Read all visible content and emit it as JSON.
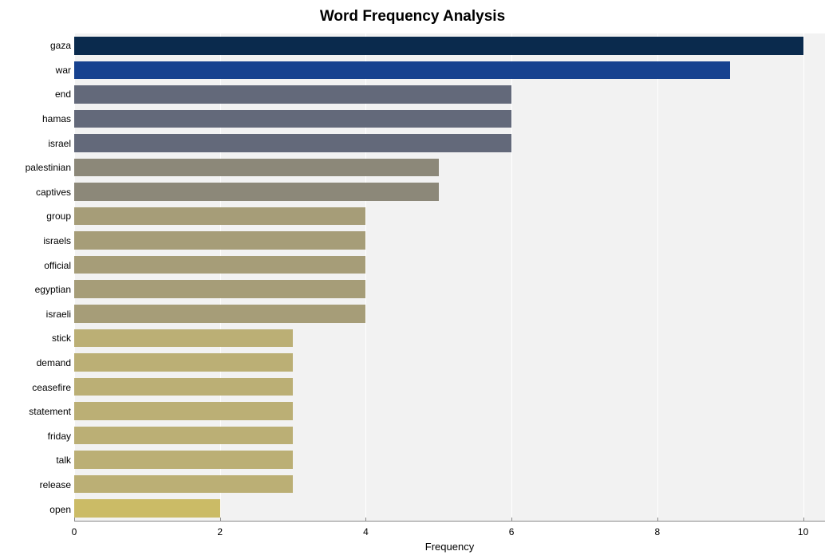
{
  "chart": {
    "type": "bar-horizontal",
    "title": "Word Frequency Analysis",
    "title_fontsize": 19,
    "title_fontweight": "bold",
    "background_color": "#ffffff",
    "plot_background_color": "#f2f2f2",
    "grid_color": "#ffffff",
    "axis_color": "#888888",
    "xlabel": "Frequency",
    "xlabel_fontsize": 13,
    "ylabel_fontsize": 12,
    "xlim": [
      0,
      10.3
    ],
    "xticks": [
      0,
      2,
      4,
      6,
      8,
      10
    ],
    "bar_height_ratio": 0.74,
    "words": [
      {
        "label": "gaza",
        "value": 10,
        "color": "#0a2a4d"
      },
      {
        "label": "war",
        "value": 9,
        "color": "#17428f"
      },
      {
        "label": "end",
        "value": 6,
        "color": "#63697a"
      },
      {
        "label": "hamas",
        "value": 6,
        "color": "#63697a"
      },
      {
        "label": "israel",
        "value": 6,
        "color": "#63697a"
      },
      {
        "label": "palestinian",
        "value": 5,
        "color": "#8c8879"
      },
      {
        "label": "captives",
        "value": 5,
        "color": "#8c8879"
      },
      {
        "label": "group",
        "value": 4,
        "color": "#a69d78"
      },
      {
        "label": "israels",
        "value": 4,
        "color": "#a69d78"
      },
      {
        "label": "official",
        "value": 4,
        "color": "#a69d78"
      },
      {
        "label": "egyptian",
        "value": 4,
        "color": "#a69d78"
      },
      {
        "label": "israeli",
        "value": 4,
        "color": "#a69d78"
      },
      {
        "label": "stick",
        "value": 3,
        "color": "#bbaf75"
      },
      {
        "label": "demand",
        "value": 3,
        "color": "#bbaf75"
      },
      {
        "label": "ceasefire",
        "value": 3,
        "color": "#bbaf75"
      },
      {
        "label": "statement",
        "value": 3,
        "color": "#bbaf75"
      },
      {
        "label": "friday",
        "value": 3,
        "color": "#bbaf75"
      },
      {
        "label": "talk",
        "value": 3,
        "color": "#bbaf75"
      },
      {
        "label": "release",
        "value": 3,
        "color": "#bbaf75"
      },
      {
        "label": "open",
        "value": 2,
        "color": "#cbbb66"
      }
    ]
  }
}
